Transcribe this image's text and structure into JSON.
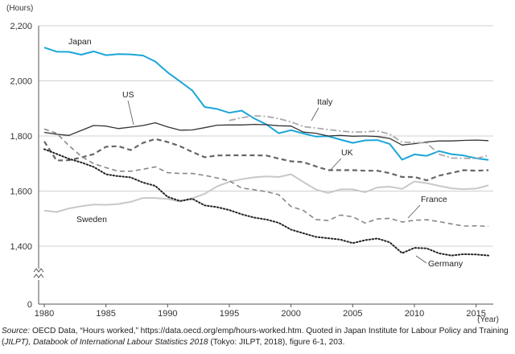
{
  "chart_data": {
    "type": "line",
    "y_unit": "(Hours)",
    "x_unit": "(Year)",
    "ylim": [
      0,
      2200
    ],
    "y_axis_break": "between 0 and 1,400",
    "y_ticks": [
      0,
      1400,
      1600,
      1800,
      2000,
      2200
    ],
    "y_tick_labels": [
      "0",
      "1,400",
      "1,600",
      "1,800",
      "2,000",
      "2,200"
    ],
    "x_ticks": [
      1980,
      1985,
      1990,
      1995,
      2000,
      2005,
      2010,
      2015
    ],
    "x_tick_labels": [
      "1980",
      "1985",
      "1990",
      "1995",
      "2000",
      "2005",
      "2010",
      "2015"
    ],
    "xlim": [
      1980,
      2016
    ],
    "grid": "horizontal",
    "years": [
      1980,
      1981,
      1982,
      1983,
      1984,
      1985,
      1986,
      1987,
      1988,
      1989,
      1990,
      1991,
      1992,
      1993,
      1994,
      1995,
      1996,
      1997,
      1998,
      1999,
      2000,
      2001,
      2002,
      2003,
      2004,
      2005,
      2006,
      2007,
      2008,
      2009,
      2010,
      2011,
      2012,
      2013,
      2014,
      2015,
      2016
    ],
    "series": [
      {
        "name": "Japan",
        "color": "#1aa6d9",
        "style": "solid",
        "width": 2,
        "values": [
          2121,
          2106,
          2105,
          2095,
          2107,
          2093,
          2097,
          2096,
          2092,
          2070,
          2031,
          1998,
          1965,
          1905,
          1898,
          1884,
          1892,
          1864,
          1842,
          1810,
          1821,
          1809,
          1798,
          1799,
          1787,
          1775,
          1784,
          1785,
          1771,
          1714,
          1733,
          1728,
          1745,
          1734,
          1729,
          1719,
          1713
        ]
      },
      {
        "name": "US",
        "color": "#333333",
        "style": "solid",
        "width": 1.3,
        "values": [
          1813,
          1806,
          1802,
          1820,
          1838,
          1836,
          1827,
          1832,
          1838,
          1848,
          1833,
          1821,
          1822,
          1830,
          1839,
          1840,
          1840,
          1842,
          1841,
          1837,
          1836,
          1814,
          1810,
          1800,
          1802,
          1799,
          1800,
          1798,
          1791,
          1767,
          1772,
          1778,
          1782,
          1782,
          1784,
          1785,
          1783
        ]
      },
      {
        "name": "Italy",
        "color": "#aaaaaa",
        "style": "dashdot",
        "width": 1.8,
        "values": [
          null,
          null,
          null,
          null,
          null,
          null,
          null,
          null,
          null,
          null,
          null,
          null,
          null,
          null,
          null,
          1856,
          1866,
          1873,
          1871,
          1863,
          1851,
          1834,
          1829,
          1823,
          1818,
          1814,
          1815,
          1818,
          1807,
          1777,
          1777,
          1774,
          1734,
          1720,
          1719,
          1718,
          1730
        ]
      },
      {
        "name": "UK",
        "color": "#666666",
        "style": "dashed",
        "width": 2.2,
        "values": [
          1780,
          1711,
          1712,
          1722,
          1734,
          1761,
          1763,
          1749,
          1775,
          1789,
          1778,
          1763,
          1742,
          1723,
          1729,
          1730,
          1730,
          1730,
          1729,
          1718,
          1708,
          1705,
          1690,
          1676,
          1676,
          1676,
          1674,
          1674,
          1665,
          1651,
          1651,
          1639,
          1656,
          1666,
          1676,
          1674,
          1676
        ]
      },
      {
        "name": "Sweden",
        "color": "#c8c8c8",
        "style": "solid",
        "width": 2,
        "values": [
          1529,
          1524,
          1537,
          1545,
          1551,
          1550,
          1553,
          1561,
          1575,
          1575,
          1571,
          1562,
          1574,
          1590,
          1617,
          1634,
          1643,
          1650,
          1653,
          1651,
          1661,
          1633,
          1606,
          1593,
          1606,
          1606,
          1596,
          1613,
          1616,
          1608,
          1635,
          1629,
          1619,
          1610,
          1607,
          1609,
          1621
        ]
      },
      {
        "name": "France",
        "color": "#888888",
        "style": "dashed",
        "width": 1.6,
        "values": [
          1825,
          1810,
          1765,
          1726,
          1700,
          1685,
          1672,
          1672,
          1679,
          1688,
          1667,
          1664,
          1664,
          1657,
          1648,
          1637,
          1611,
          1605,
          1598,
          1587,
          1544,
          1530,
          1497,
          1493,
          1513,
          1507,
          1484,
          1499,
          1501,
          1488,
          1494,
          1496,
          1489,
          1481,
          1473,
          1474,
          1472
        ]
      },
      {
        "name": "Germany",
        "color": "#222222",
        "style": "dotted",
        "width": 2,
        "values": [
          1752,
          1735,
          1717,
          1704,
          1688,
          1661,
          1654,
          1650,
          1631,
          1619,
          1579,
          1564,
          1572,
          1548,
          1542,
          1531,
          1516,
          1504,
          1497,
          1485,
          1460,
          1447,
          1434,
          1429,
          1424,
          1411,
          1422,
          1428,
          1414,
          1375,
          1394,
          1392,
          1374,
          1366,
          1371,
          1370,
          1366
        ]
      }
    ]
  },
  "source": {
    "prefix": "Source:",
    "text_1": " OECD Data, “Hours worked,” https://data.oecd.org/emp/hours-worked.htm. Quoted in Japan Institute for Labour Policy and Training (",
    "italic": "JILPT), Databook of International Labour Statistics 2018",
    "text_2": " (Tokyo: JILPT, 2018), figure 6-1, 203."
  }
}
